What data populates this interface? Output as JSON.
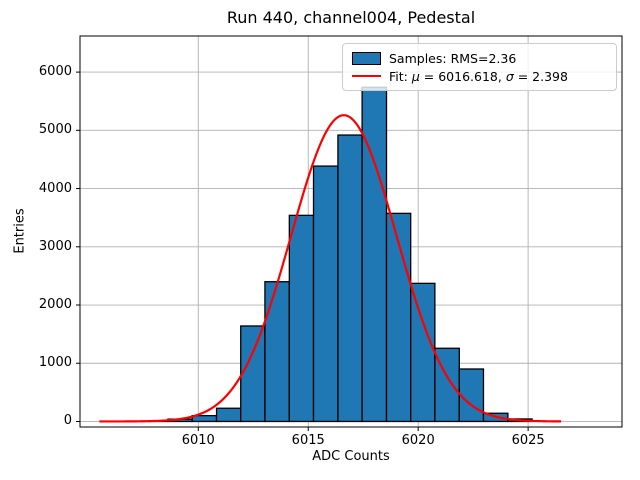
{
  "chart_data": {
    "type": "histogram",
    "title": "Run 440, channel004, Pedestal",
    "xlabel": "ADC Counts",
    "ylabel": "Entries",
    "xlim": [
      6004.62,
      6029.27
    ],
    "ylim": [
      -95,
      6620
    ],
    "x_ticks": [
      6010,
      6015,
      6020,
      6025
    ],
    "y_ticks": [
      0,
      1000,
      2000,
      3000,
      4000,
      5000,
      6000
    ],
    "grid": true,
    "legend_position": "upper right",
    "bin_edges": [
      6006.41,
      6007.51,
      6008.62,
      6009.72,
      6010.83,
      6011.93,
      6013.03,
      6014.14,
      6015.24,
      6016.35,
      6017.45,
      6018.56,
      6019.66,
      6020.76,
      6021.87,
      6022.97,
      6024.08,
      6025.18
    ],
    "counts": [
      2,
      6,
      40,
      100,
      227,
      1640,
      2400,
      3540,
      4386,
      4919,
      5740,
      3574,
      2372,
      1257,
      901,
      141,
      43
    ],
    "fit": {
      "mu": 6016.618,
      "sigma": 2.398,
      "peak": 5260,
      "x_range": [
        6005.5,
        6026.5
      ]
    },
    "colors": {
      "bar_fill": "#1f77b4",
      "bar_edge": "#000000",
      "fit_line": "#ff0000",
      "grid": "#b0b0b0",
      "spine": "#000000"
    },
    "legend": {
      "samples_label": "Samples: RMS=2.36",
      "fit_label": {
        "prefix": "Fit: ",
        "mu_symbol": "μ",
        "mu_value": " = 6016.618, ",
        "sigma_symbol": "σ",
        "sigma_value": " = 2.398"
      }
    }
  }
}
